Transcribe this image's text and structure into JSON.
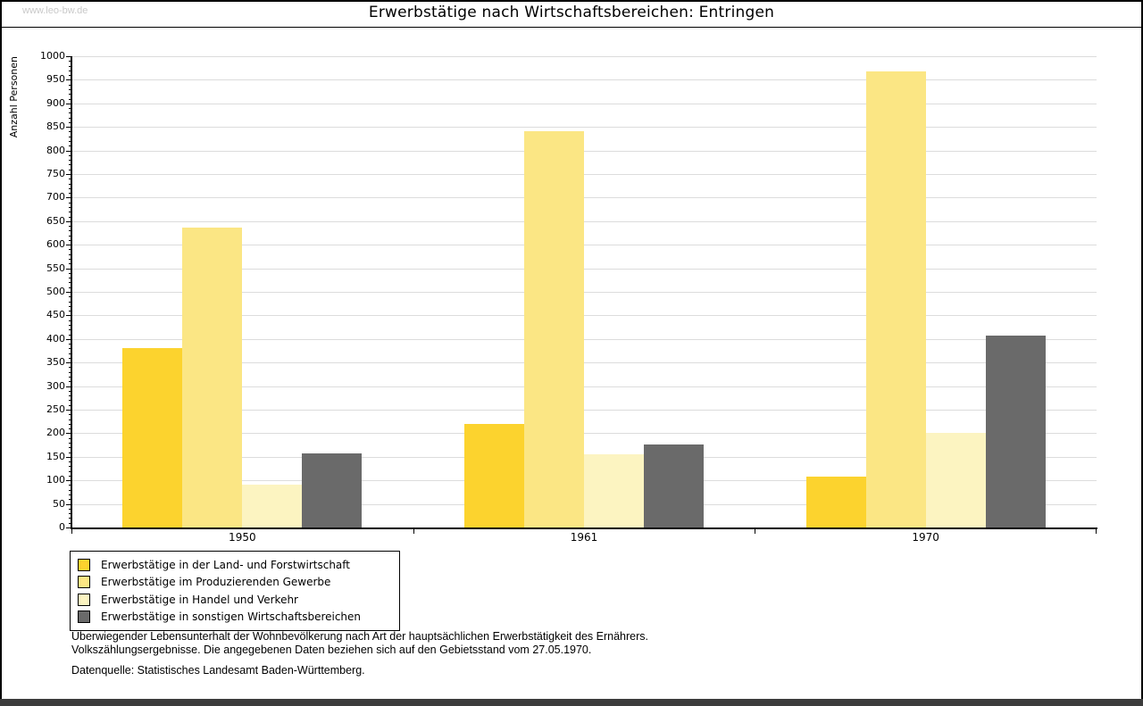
{
  "page": {
    "watermark": "www.leo-bw.de"
  },
  "chart_data": {
    "type": "bar",
    "title": "Erwerbstätige nach Wirtschaftsbereichen: Entringen",
    "xlabel": "",
    "ylabel": "Anzahl Personen",
    "ylim": [
      0,
      1000
    ],
    "ytick_step": 50,
    "minor_tick_step": 10,
    "grid": true,
    "legend_position": "bottom-left",
    "categories": [
      "1950",
      "1961",
      "1970"
    ],
    "series": [
      {
        "name": "Erwerbstätige in der Land- und Forstwirtschaft",
        "color": "#fcd32e",
        "values": [
          381,
          220,
          108
        ]
      },
      {
        "name": "Erwerbstätige im Produzierenden Gewerbe",
        "color": "#fbe684",
        "values": [
          637,
          841,
          968
        ]
      },
      {
        "name": "Erwerbstätige in Handel und Verkehr",
        "color": "#fcf4c1",
        "values": [
          91,
          155,
          200
        ]
      },
      {
        "name": "Erwerbstätige in sonstigen Wirtschaftsbereichen",
        "color": "#6a6a6a",
        "values": [
          157,
          176,
          408
        ]
      }
    ]
  },
  "footnotes": {
    "line1": "Überwiegender Lebensunterhalt der Wohnbevölkerung nach Art der hauptsächlichen Erwerbstätigkeit des Ernährers.",
    "line2": "Volkszählungsergebnisse. Die angegebenen Daten beziehen sich auf den Gebietsstand vom 27.05.1970.",
    "source": "Datenquelle: Statistisches Landesamt Baden-Württemberg."
  },
  "colors": {
    "grid": "#dcdcdc",
    "axis": "#000000",
    "watermark": "#c9c9c9",
    "bottom_bar": "#3c3c3c"
  }
}
